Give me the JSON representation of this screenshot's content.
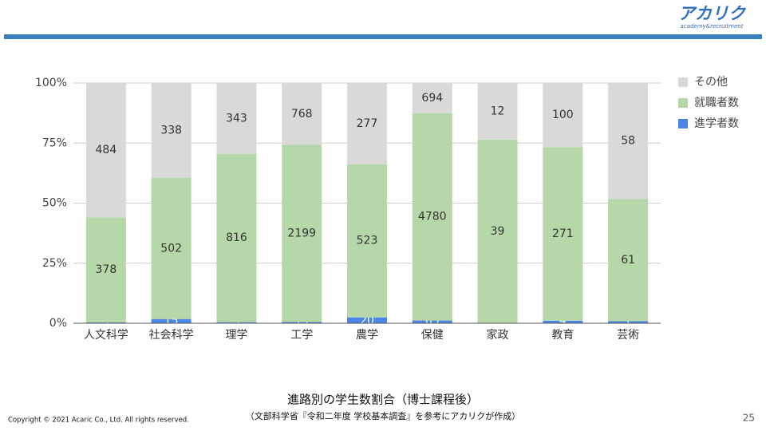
{
  "header": {
    "logo": "アカリク",
    "logo_sub": "academy&recruitment"
  },
  "chart_data": {
    "type": "bar",
    "stack": "percent",
    "categories": [
      "人文科学",
      "社会科学",
      "理学",
      "工学",
      "農学",
      "保健",
      "家政",
      "教育",
      "芸術"
    ],
    "series": [
      {
        "name": "進学者数",
        "color": "#4a86e8",
        "values": [
          3,
          15,
          5,
          15,
          20,
          63,
          0,
          4,
          1
        ]
      },
      {
        "name": "就職者数",
        "color": "#b6d7a8",
        "values": [
          378,
          502,
          816,
          2199,
          523,
          4780,
          39,
          271,
          61
        ]
      },
      {
        "name": "その他",
        "color": "#d9d9d9",
        "values": [
          484,
          338,
          343,
          768,
          277,
          694,
          12,
          100,
          58
        ]
      }
    ],
    "ylim": [
      0,
      100
    ],
    "yticks": [
      {
        "value": 0,
        "label": "0%"
      },
      {
        "value": 25,
        "label": "25%"
      },
      {
        "value": 50,
        "label": "50%"
      },
      {
        "value": 75,
        "label": "75%"
      },
      {
        "value": 100,
        "label": "100%"
      }
    ],
    "grid": true,
    "legend": "right"
  },
  "caption": {
    "title": "進路別の学生数割合（博士課程後）",
    "source": "（文部科学省『令和二年度 学校基本調査』を参考にアカリクが作成）"
  },
  "footer": {
    "copyright": "Copyright © 2021 Acaric Co., Ltd. All rights reserved.",
    "page": "25"
  }
}
